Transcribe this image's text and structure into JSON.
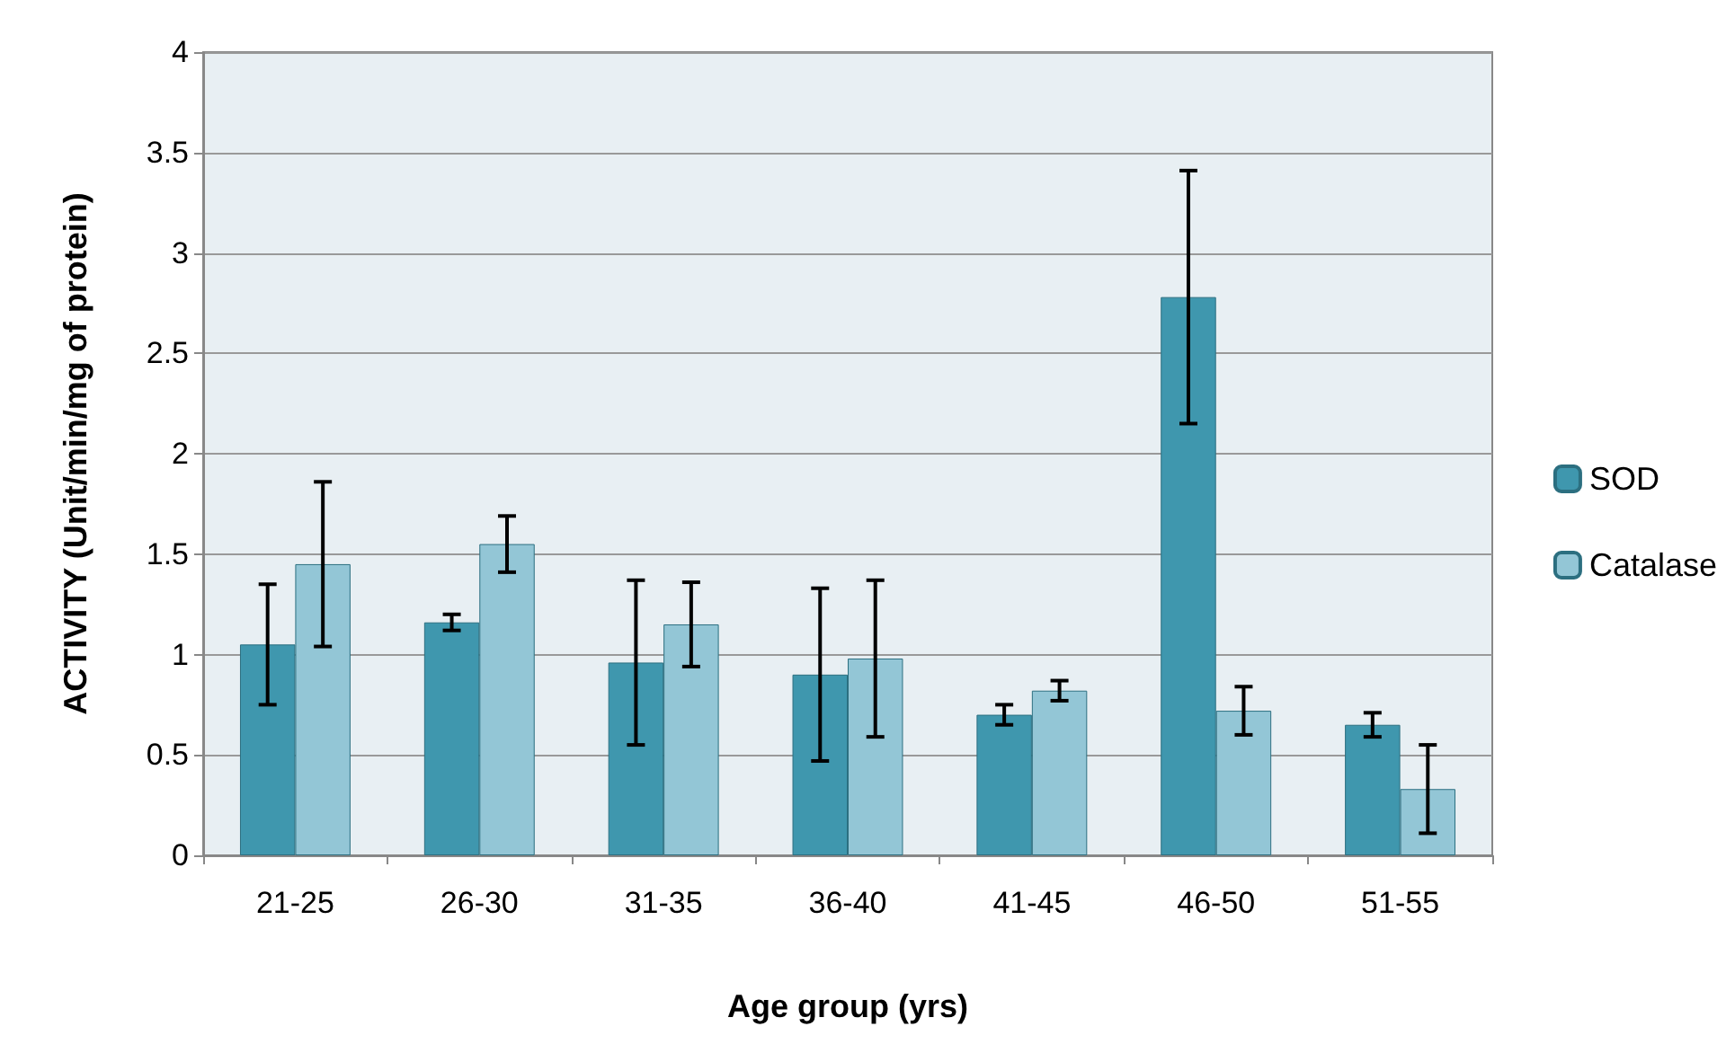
{
  "chart_data": {
    "type": "bar",
    "xlabel": "Age group (yrs)",
    "ylabel": "ACTIVITY (Unit/min/mg of protein)",
    "categories": [
      "21-25",
      "26-30",
      "31-35",
      "36-40",
      "41-45",
      "46-50",
      "51-55"
    ],
    "series": [
      {
        "name": "SOD",
        "color": "#3f97ae",
        "values": [
          1.05,
          1.16,
          0.96,
          0.9,
          0.7,
          2.78,
          0.65
        ],
        "errors": [
          0.3,
          0.04,
          0.41,
          0.43,
          0.05,
          0.63,
          0.06
        ]
      },
      {
        "name": "Catalase",
        "color": "#93c6d6",
        "values": [
          1.45,
          1.55,
          1.15,
          0.98,
          0.82,
          0.72,
          0.33
        ],
        "errors": [
          0.41,
          0.14,
          0.21,
          0.39,
          0.05,
          0.12,
          0.22
        ]
      }
    ],
    "ylim": [
      0,
      4
    ],
    "yticks": [
      0,
      0.5,
      1,
      1.5,
      2,
      2.5,
      3,
      3.5,
      4
    ],
    "grid": "y",
    "legend": "right"
  }
}
